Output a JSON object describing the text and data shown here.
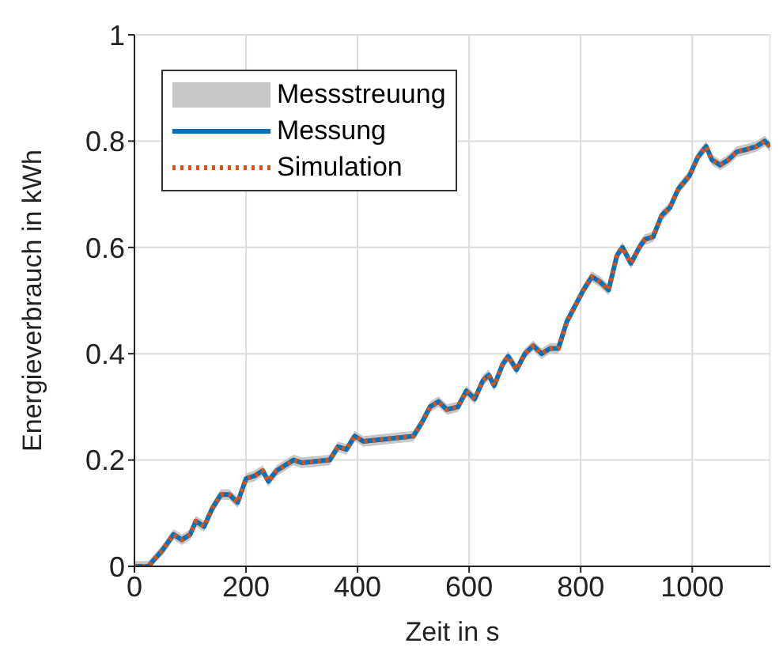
{
  "chart_data": {
    "type": "line",
    "xlabel": "Zeit in s",
    "ylabel": "Energieverbrauch in kWh",
    "x": [
      0,
      25,
      50,
      70,
      85,
      100,
      110,
      125,
      140,
      155,
      170,
      185,
      200,
      215,
      230,
      240,
      255,
      270,
      285,
      300,
      350,
      365,
      380,
      395,
      410,
      500,
      515,
      530,
      545,
      560,
      580,
      595,
      610,
      625,
      635,
      645,
      660,
      670,
      685,
      700,
      715,
      730,
      745,
      760,
      775,
      790,
      805,
      820,
      835,
      850,
      865,
      875,
      890,
      905,
      915,
      930,
      945,
      960,
      975,
      995,
      1010,
      1025,
      1035,
      1050,
      1065,
      1080,
      1100,
      1115,
      1130,
      1140
    ],
    "series": [
      {
        "name": "Messung",
        "color": "#0072bd",
        "line_style": "solid",
        "values": [
          0,
          0,
          0.03,
          0.06,
          0.05,
          0.06,
          0.085,
          0.075,
          0.11,
          0.135,
          0.135,
          0.12,
          0.165,
          0.17,
          0.18,
          0.16,
          0.18,
          0.19,
          0.2,
          0.195,
          0.2,
          0.225,
          0.22,
          0.245,
          0.235,
          0.245,
          0.27,
          0.3,
          0.31,
          0.295,
          0.3,
          0.33,
          0.315,
          0.35,
          0.36,
          0.34,
          0.38,
          0.395,
          0.37,
          0.4,
          0.415,
          0.4,
          0.41,
          0.41,
          0.46,
          0.49,
          0.52,
          0.545,
          0.535,
          0.52,
          0.585,
          0.6,
          0.57,
          0.6,
          0.615,
          0.62,
          0.66,
          0.675,
          0.71,
          0.735,
          0.77,
          0.79,
          0.765,
          0.755,
          0.765,
          0.78,
          0.785,
          0.79,
          0.8,
          0.79
        ],
        "lower": [
          0,
          0,
          0.02,
          0.05,
          0.04,
          0.05,
          0.075,
          0.065,
          0.1,
          0.125,
          0.125,
          0.11,
          0.155,
          0.16,
          0.17,
          0.15,
          0.17,
          0.18,
          0.19,
          0.185,
          0.19,
          0.215,
          0.21,
          0.235,
          0.225,
          0.235,
          0.26,
          0.29,
          0.3,
          0.285,
          0.29,
          0.32,
          0.305,
          0.34,
          0.35,
          0.33,
          0.37,
          0.385,
          0.36,
          0.39,
          0.405,
          0.39,
          0.4,
          0.4,
          0.45,
          0.48,
          0.51,
          0.535,
          0.525,
          0.51,
          0.575,
          0.59,
          0.56,
          0.59,
          0.605,
          0.61,
          0.65,
          0.665,
          0.7,
          0.725,
          0.76,
          0.78,
          0.755,
          0.745,
          0.755,
          0.77,
          0.775,
          0.78,
          0.79,
          0.78
        ],
        "upper": [
          0.01,
          0.01,
          0.04,
          0.07,
          0.06,
          0.07,
          0.095,
          0.085,
          0.12,
          0.145,
          0.145,
          0.13,
          0.175,
          0.18,
          0.19,
          0.17,
          0.19,
          0.2,
          0.21,
          0.205,
          0.21,
          0.235,
          0.23,
          0.255,
          0.245,
          0.255,
          0.28,
          0.31,
          0.32,
          0.305,
          0.31,
          0.34,
          0.325,
          0.36,
          0.37,
          0.35,
          0.39,
          0.405,
          0.38,
          0.41,
          0.425,
          0.41,
          0.42,
          0.42,
          0.47,
          0.5,
          0.53,
          0.555,
          0.545,
          0.53,
          0.595,
          0.61,
          0.58,
          0.61,
          0.625,
          0.63,
          0.67,
          0.685,
          0.72,
          0.745,
          0.78,
          0.8,
          0.775,
          0.765,
          0.775,
          0.79,
          0.795,
          0.8,
          0.81,
          0.8
        ]
      },
      {
        "name": "Simulation",
        "color": "#d95319",
        "line_style": "dotted",
        "values": [
          0,
          0,
          0.03,
          0.06,
          0.05,
          0.06,
          0.085,
          0.075,
          0.11,
          0.135,
          0.135,
          0.12,
          0.165,
          0.17,
          0.18,
          0.16,
          0.18,
          0.19,
          0.2,
          0.195,
          0.2,
          0.225,
          0.22,
          0.245,
          0.235,
          0.245,
          0.27,
          0.3,
          0.31,
          0.295,
          0.3,
          0.33,
          0.315,
          0.35,
          0.36,
          0.34,
          0.38,
          0.395,
          0.37,
          0.4,
          0.415,
          0.4,
          0.41,
          0.41,
          0.46,
          0.49,
          0.52,
          0.545,
          0.535,
          0.52,
          0.585,
          0.6,
          0.57,
          0.6,
          0.615,
          0.62,
          0.66,
          0.675,
          0.71,
          0.735,
          0.77,
          0.79,
          0.765,
          0.755,
          0.765,
          0.78,
          0.785,
          0.79,
          0.8,
          0.79
        ]
      }
    ],
    "annotations": [
      "Messstreuung"
    ],
    "xlim": [
      0,
      1140
    ],
    "xticks": [
      0,
      200,
      400,
      600,
      800,
      1000
    ],
    "ylim": [
      0,
      1
    ],
    "yticks": [
      0,
      0.2,
      0.4,
      0.6,
      0.8,
      1
    ],
    "grid": true,
    "legend": "top left",
    "marker": "none"
  }
}
